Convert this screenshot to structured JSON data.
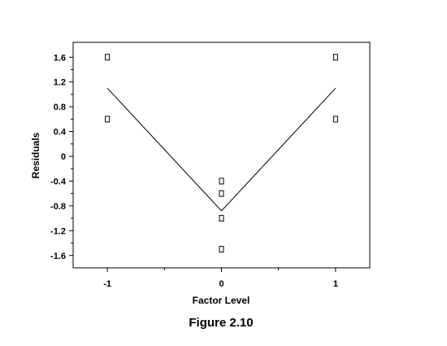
{
  "caption": "Figure 2.10",
  "chart_data": {
    "type": "scatter",
    "xlabel": "Factor Level",
    "ylabel": "Residuals",
    "xlim": [
      -1.3,
      1.3
    ],
    "ylim": [
      -1.8,
      1.84
    ],
    "x_ticks": [
      -1,
      0,
      1
    ],
    "x_tick_labels": [
      "-1",
      "0",
      "1"
    ],
    "y_ticks": [
      -1.6,
      -1.2,
      -0.8,
      -0.4,
      0,
      0.4,
      0.8,
      1.2,
      1.6
    ],
    "y_tick_labels": [
      "-1.6",
      "-1.2",
      "-0.8",
      "-0.4",
      "0",
      "0.4",
      "0.8",
      "1.2",
      "1.6"
    ],
    "points": [
      {
        "x": -1,
        "y": 1.6
      },
      {
        "x": -1,
        "y": 0.6
      },
      {
        "x": 0,
        "y": -0.4
      },
      {
        "x": 0,
        "y": -0.6
      },
      {
        "x": 0,
        "y": -1.0
      },
      {
        "x": 0,
        "y": -1.5
      },
      {
        "x": 1,
        "y": 1.6
      },
      {
        "x": 1,
        "y": 0.6
      }
    ],
    "fit_line": {
      "x": [
        -1,
        0,
        1
      ],
      "y": [
        1.1,
        -0.88,
        1.1
      ]
    },
    "grid": false,
    "legend": "none"
  }
}
